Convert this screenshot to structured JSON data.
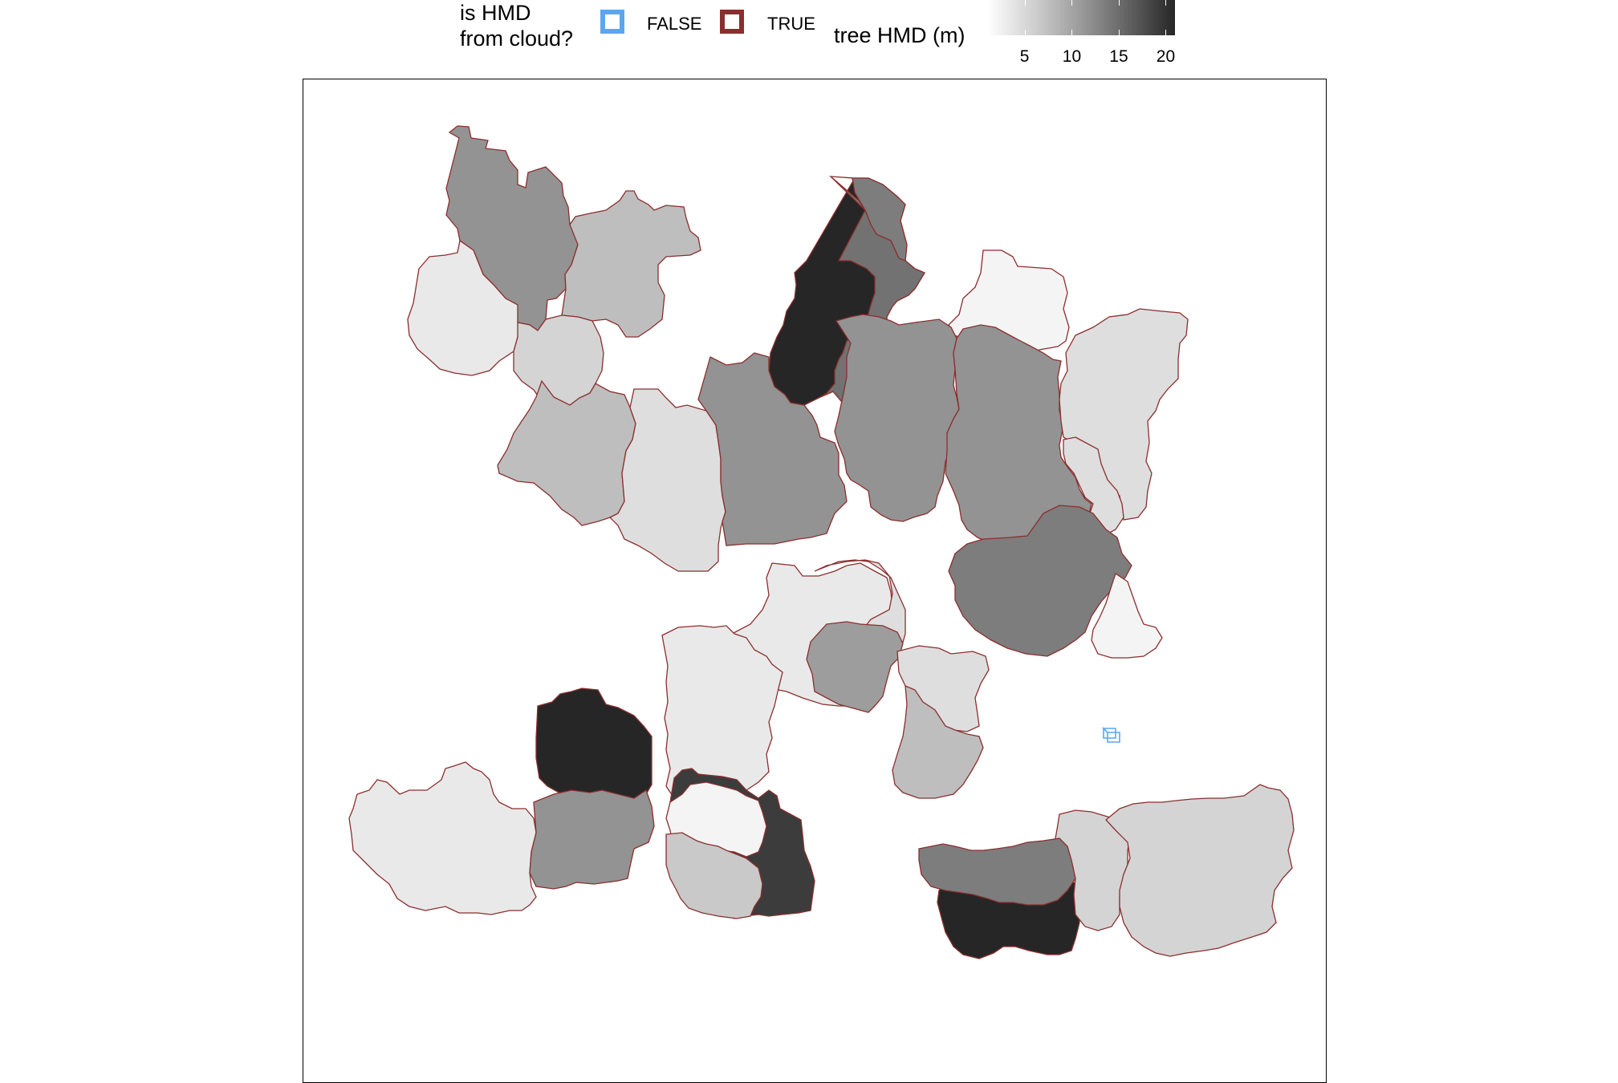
{
  "chart_data": {
    "type": "choropleth-map",
    "legend_boundary": {
      "title_line1": "is HMD",
      "title_line2": "from cloud?",
      "entries": [
        {
          "label": "FALSE",
          "color": "#5ca6f0"
        },
        {
          "label": "TRUE",
          "color": "#8b2e2e"
        }
      ]
    },
    "legend_fill": {
      "title": "tree HMD (m)",
      "ticks": [
        "5",
        "10",
        "15",
        "20"
      ],
      "tick_values": [
        5,
        10,
        15,
        20
      ],
      "range": [
        1,
        21
      ]
    },
    "crowns": [
      {
        "hmd": 11,
        "from_cloud": true
      },
      {
        "hmd": 7,
        "from_cloud": true
      },
      {
        "hmd": 3,
        "from_cloud": true
      },
      {
        "hmd": 5,
        "from_cloud": true
      },
      {
        "hmd": 21,
        "from_cloud": true
      },
      {
        "hmd": 2,
        "from_cloud": true
      },
      {
        "hmd": 7,
        "from_cloud": true
      },
      {
        "hmd": 4,
        "from_cloud": true
      },
      {
        "hmd": 13,
        "from_cloud": true
      },
      {
        "hmd": 14,
        "from_cloud": true
      },
      {
        "hmd": 11,
        "from_cloud": true
      },
      {
        "hmd": 11,
        "from_cloud": true
      },
      {
        "hmd": 11,
        "from_cloud": true
      },
      {
        "hmd": 4,
        "from_cloud": true
      },
      {
        "hmd": 4,
        "from_cloud": true
      },
      {
        "hmd": 13,
        "from_cloud": true
      },
      {
        "hmd": 2,
        "from_cloud": true
      },
      {
        "hmd": 3,
        "from_cloud": true
      },
      {
        "hmd": 4,
        "from_cloud": true
      },
      {
        "hmd": 3,
        "from_cloud": true
      },
      {
        "hmd": 10,
        "from_cloud": true
      },
      {
        "hmd": 4,
        "from_cloud": true
      },
      {
        "hmd": 7,
        "from_cloud": true
      },
      {
        "hmd": 3,
        "from_cloud": true
      },
      {
        "hmd": 21,
        "from_cloud": true
      },
      {
        "hmd": 11,
        "from_cloud": true
      },
      {
        "hmd": 19,
        "from_cloud": true
      },
      {
        "hmd": 2,
        "from_cloud": true
      },
      {
        "hmd": 6,
        "from_cloud": true
      },
      {
        "hmd": 21,
        "from_cloud": true
      },
      {
        "hmd": 5,
        "from_cloud": true
      },
      {
        "hmd": 13,
        "from_cloud": true
      },
      {
        "hmd": 5,
        "from_cloud": true
      },
      {
        "hmd": 2,
        "from_cloud": false
      }
    ]
  }
}
